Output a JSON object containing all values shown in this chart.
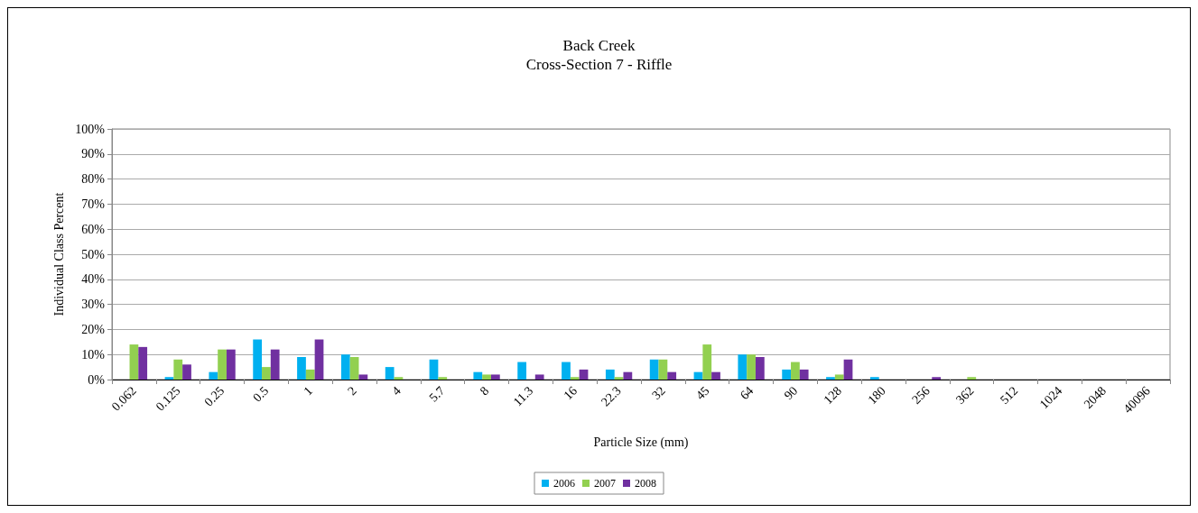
{
  "chart_data": {
    "type": "bar",
    "title": "Back Creek",
    "subtitle": "Cross-Section 7 - Riffle",
    "xlabel": "Particle Size (mm)",
    "ylabel": "Individual Class Percent",
    "categories": [
      "0.062",
      "0.125",
      "0.25",
      "0.5",
      "1",
      "2",
      "4",
      "5.7",
      "8",
      "11.3",
      "16",
      "22.3",
      "32",
      "45",
      "64",
      "90",
      "128",
      "180",
      "256",
      "362",
      "512",
      "1024",
      "2048",
      "40096"
    ],
    "series": [
      {
        "name": "2006",
        "color": "#00b0f0",
        "values": [
          0,
          1,
          3,
          16,
          9,
          10,
          5,
          8,
          3,
          7,
          7,
          4,
          8,
          3,
          10,
          4,
          1,
          1,
          0,
          0,
          0,
          0,
          0,
          0
        ]
      },
      {
        "name": "2007",
        "color": "#92d050",
        "values": [
          14,
          8,
          12,
          5,
          4,
          9,
          1,
          1,
          2,
          0,
          1,
          1,
          8,
          14,
          10,
          7,
          2,
          0,
          0,
          1,
          0,
          0,
          0,
          0
        ]
      },
      {
        "name": "2008",
        "color": "#7030a0",
        "values": [
          13,
          6,
          12,
          12,
          16,
          2,
          0,
          0,
          2,
          2,
          4,
          3,
          3,
          3,
          9,
          4,
          8,
          0,
          1,
          0,
          0,
          0,
          0,
          0
        ]
      }
    ],
    "ylim": [
      0,
      100
    ],
    "yticks": [
      {
        "value": 0,
        "label": "0%"
      },
      {
        "value": 10,
        "label": "10%"
      },
      {
        "value": 20,
        "label": "20%"
      },
      {
        "value": 30,
        "label": "30%"
      },
      {
        "value": 40,
        "label": "40%"
      },
      {
        "value": 50,
        "label": "50%"
      },
      {
        "value": 60,
        "label": "60%"
      },
      {
        "value": 70,
        "label": "70%"
      },
      {
        "value": 80,
        "label": "80%"
      },
      {
        "value": 90,
        "label": "90%"
      },
      {
        "value": 100,
        "label": "100%"
      }
    ],
    "grid": "y",
    "legend": "bottom"
  }
}
